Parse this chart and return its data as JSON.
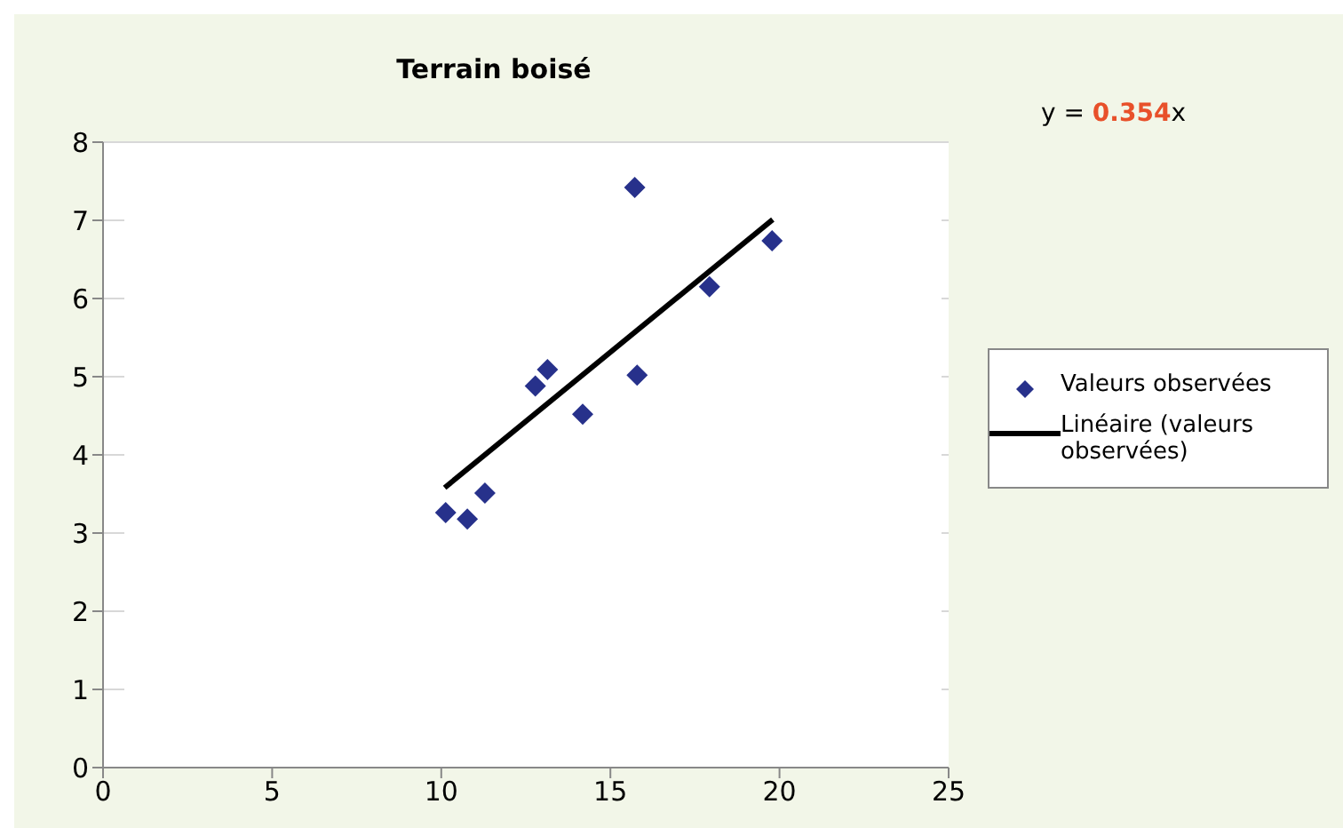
{
  "chart_data": {
    "type": "scatter",
    "title": "Terrain boisé",
    "series": [
      {
        "name": "Valeurs observées",
        "type": "scatter",
        "color": "#27318b",
        "marker": "diamond",
        "x": [
          10.13,
          10.77,
          11.29,
          12.78,
          13.14,
          14.18,
          15.72,
          15.79,
          17.93,
          19.78
        ],
        "values": [
          3.26,
          3.18,
          3.51,
          4.88,
          5.09,
          4.52,
          7.42,
          5.02,
          6.15,
          6.74
        ]
      },
      {
        "name": "Linéaire (valeurs observées)",
        "type": "line",
        "color": "#000000",
        "marker": "none",
        "x": [
          10.1,
          19.8
        ],
        "values": [
          3.58,
          7.01
        ]
      }
    ],
    "xlim": [
      0,
      25
    ],
    "xticks": [
      0,
      5,
      10,
      15,
      20,
      25
    ],
    "ylim": [
      0,
      8
    ],
    "yticks": [
      0,
      1,
      2,
      3,
      4,
      5,
      6,
      7,
      8
    ],
    "grid": "y",
    "legend": "right",
    "annotations": [
      "y = 0.354x"
    ]
  }
}
